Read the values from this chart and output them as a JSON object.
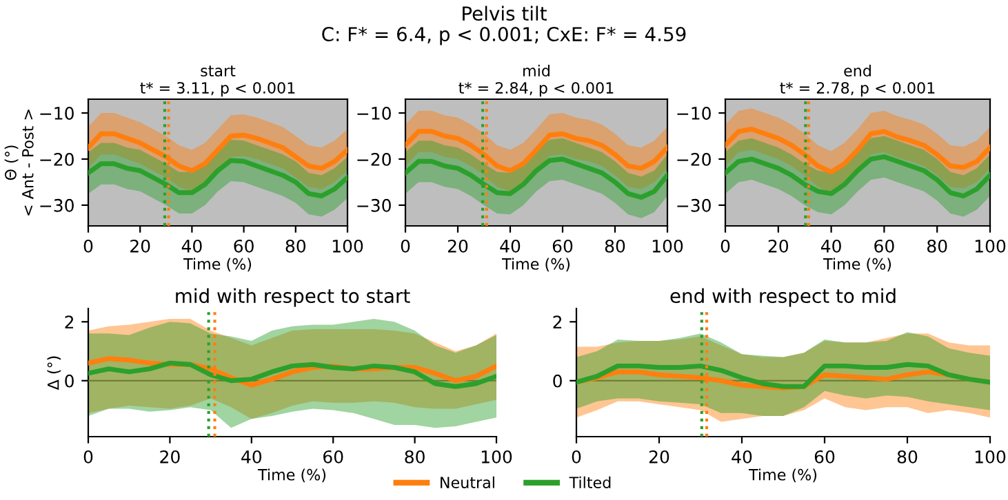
{
  "chart_data": [
    {
      "type": "line",
      "title": "start",
      "subtitle": "t* = 3.11, p < 0.001",
      "legend": "bottom",
      "ylabel": "Θ (°)\n< Ant - Post >",
      "xlabel": "Time (%)",
      "annotations": [
        "Pelvis tilt",
        "C: F* = 6.4, p < 0.001; CxE: F* = 4.59"
      ],
      "x": [
        0,
        5,
        10,
        15,
        20,
        25,
        30,
        35,
        40,
        45,
        50,
        55,
        60,
        65,
        70,
        75,
        80,
        85,
        90,
        95,
        100
      ],
      "series": [
        {
          "name": "Neutral",
          "color": "#ff7f0e",
          "values": [
            -17.5,
            -14.5,
            -14.5,
            -15.5,
            -16.5,
            -18,
            -19.5,
            -21.5,
            -22.5,
            -21,
            -18,
            -15,
            -14.8,
            -15.5,
            -16.5,
            -17.5,
            -19.5,
            -21.5,
            -22,
            -20.5,
            -18
          ],
          "lower": [
            -22,
            -19,
            -19,
            -20,
            -21,
            -22.5,
            -24,
            -26,
            -27,
            -25.5,
            -22.5,
            -19.5,
            -19.3,
            -20,
            -21,
            -22,
            -24,
            -26,
            -26.5,
            -25,
            -22.5
          ],
          "upper": [
            -13,
            -10,
            -10,
            -11,
            -12,
            -13.5,
            -15,
            -17,
            -18,
            -16.5,
            -13.5,
            -10.5,
            -10.3,
            -11,
            -12,
            -13,
            -15,
            -17,
            -17.5,
            -16,
            -13.5
          ]
        },
        {
          "name": "Tilted",
          "color": "#2ca02c",
          "values": [
            -23,
            -21,
            -21,
            -22,
            -22.5,
            -24,
            -25.5,
            -27.3,
            -27.3,
            -25.5,
            -22.5,
            -20.3,
            -20.5,
            -21.5,
            -22.5,
            -23.5,
            -25,
            -27.5,
            -28,
            -26.5,
            -24
          ],
          "lower": [
            -27.5,
            -25.5,
            -25.5,
            -26.5,
            -27,
            -28.5,
            -30,
            -31.8,
            -31.8,
            -30,
            -27,
            -24.8,
            -25,
            -26,
            -27,
            -28,
            -29.5,
            -32,
            -32.5,
            -31,
            -28.5
          ],
          "upper": [
            -18.5,
            -16.5,
            -16.5,
            -17.5,
            -18,
            -19.5,
            -21,
            -22.8,
            -22.8,
            -21,
            -18,
            -15.8,
            -16,
            -17,
            -18,
            -19,
            -20.5,
            -23,
            -23.5,
            -22,
            -19.5
          ]
        }
      ],
      "xlim": [
        0,
        100
      ],
      "xticks": [
        0,
        20,
        40,
        60,
        80,
        100
      ],
      "ylim": [
        -34.5,
        -7
      ],
      "yticks": [
        {
          "value": -30,
          "label": "−30"
        },
        {
          "value": -20,
          "label": "−20"
        },
        {
          "value": -10,
          "label": "−10"
        }
      ],
      "bands": [
        {
          "axis": "x",
          "from": 0,
          "to": 100,
          "color": "#bebebe"
        }
      ],
      "ref_lines": [
        {
          "axis": "x",
          "value": 29.5,
          "color": "#2ca02c",
          "line_style": "dotted"
        },
        {
          "axis": "x",
          "value": 31,
          "color": "#ff7f0e",
          "line_style": "dotted"
        }
      ]
    },
    {
      "type": "line",
      "title": "mid",
      "subtitle": "t* = 2.84, p < 0.001",
      "xlabel": "Time (%)",
      "x": [
        0,
        5,
        10,
        15,
        20,
        25,
        30,
        35,
        40,
        45,
        50,
        55,
        60,
        65,
        70,
        75,
        80,
        85,
        90,
        95,
        100
      ],
      "series": [
        {
          "color": "#ff7f0e",
          "values": [
            -17,
            -14,
            -14,
            -15,
            -15.5,
            -17,
            -19,
            -21.5,
            -22.5,
            -21,
            -18,
            -14.8,
            -14.5,
            -15.5,
            -16,
            -17,
            -19,
            -21.5,
            -22,
            -20.5,
            -17.5
          ],
          "lower": [
            -21.5,
            -18.5,
            -18.5,
            -19.5,
            -20,
            -21.5,
            -23.5,
            -26,
            -27,
            -25.5,
            -22.5,
            -19.3,
            -19,
            -20,
            -20.5,
            -21.5,
            -23.5,
            -26,
            -26.5,
            -25,
            -22
          ],
          "upper": [
            -12.5,
            -9.5,
            -9.5,
            -10.5,
            -11,
            -12.5,
            -14.5,
            -17,
            -18,
            -16.5,
            -13.5,
            -10.3,
            -10,
            -11,
            -11.5,
            -12.5,
            -14.5,
            -17,
            -17.5,
            -16,
            -13
          ]
        },
        {
          "color": "#2ca02c",
          "values": [
            -23,
            -20.5,
            -20.5,
            -21.5,
            -22,
            -23.5,
            -25.5,
            -27.3,
            -27.5,
            -25.5,
            -22.5,
            -20.3,
            -20,
            -21,
            -22,
            -23,
            -25,
            -27.5,
            -28.3,
            -27,
            -23.5
          ],
          "lower": [
            -27.5,
            -25,
            -25,
            -26,
            -26.5,
            -28,
            -30,
            -31.8,
            -32,
            -30,
            -27,
            -24.8,
            -24.5,
            -25.5,
            -26.5,
            -27.5,
            -29.5,
            -32,
            -32.8,
            -31.5,
            -28
          ],
          "upper": [
            -18.5,
            -16,
            -16,
            -17,
            -17.5,
            -19,
            -21,
            -22.8,
            -23,
            -21,
            -18,
            -15.8,
            -15.5,
            -16.5,
            -17.5,
            -18.5,
            -20.5,
            -23,
            -23.8,
            -22.5,
            -19
          ]
        }
      ],
      "xlim": [
        0,
        100
      ],
      "xticks": [
        0,
        20,
        40,
        60,
        80,
        100
      ],
      "ylim": [
        -34.5,
        -7
      ],
      "yticks": [
        {
          "value": -30,
          "label": "−30"
        },
        {
          "value": -20,
          "label": "−20"
        },
        {
          "value": -10,
          "label": "−10"
        }
      ],
      "bands": [
        {
          "axis": "x",
          "from": 0,
          "to": 100,
          "color": "#bebebe"
        }
      ],
      "ref_lines": [
        {
          "axis": "x",
          "value": 29.5,
          "color": "#2ca02c",
          "line_style": "dotted"
        },
        {
          "axis": "x",
          "value": 31,
          "color": "#ff7f0e",
          "line_style": "dotted"
        }
      ]
    },
    {
      "type": "line",
      "title": "end",
      "subtitle": "t* = 2.78, p < 0.001",
      "xlabel": "Time (%)",
      "x": [
        0,
        5,
        10,
        15,
        20,
        25,
        30,
        35,
        40,
        45,
        50,
        55,
        60,
        65,
        70,
        75,
        80,
        85,
        90,
        95,
        100
      ],
      "series": [
        {
          "color": "#ff7f0e",
          "values": [
            -17,
            -14,
            -13.5,
            -14.5,
            -15.5,
            -17,
            -19,
            -21.5,
            -22.8,
            -21,
            -18,
            -14.5,
            -14,
            -15.2,
            -16,
            -17,
            -19,
            -21.5,
            -21.8,
            -20.5,
            -17.5
          ],
          "lower": [
            -21.5,
            -18.5,
            -18,
            -19,
            -20,
            -21.5,
            -23.5,
            -26,
            -27.3,
            -25.5,
            -22.5,
            -19,
            -18.5,
            -19.7,
            -20.5,
            -21.5,
            -23.5,
            -26,
            -26.3,
            -25,
            -22
          ],
          "upper": [
            -12.5,
            -9.5,
            -9,
            -10,
            -11,
            -12.5,
            -14.5,
            -17,
            -18.3,
            -16.5,
            -13.5,
            -10,
            -9.5,
            -10.7,
            -11.5,
            -12.5,
            -14.5,
            -17,
            -17.3,
            -16,
            -13
          ]
        },
        {
          "color": "#2ca02c",
          "values": [
            -23,
            -20.5,
            -20,
            -21,
            -22,
            -23.5,
            -25.5,
            -27,
            -27.5,
            -25.5,
            -22.5,
            -20,
            -19.5,
            -20.5,
            -21.5,
            -22.5,
            -24.5,
            -27.3,
            -28,
            -26.5,
            -23.5
          ],
          "lower": [
            -27.5,
            -25,
            -24.5,
            -25.5,
            -26.5,
            -28,
            -30,
            -31.5,
            -32,
            -30,
            -27,
            -24.5,
            -24,
            -25,
            -26,
            -27,
            -29,
            -31.8,
            -32.5,
            -31,
            -28
          ],
          "upper": [
            -18.5,
            -16,
            -15.5,
            -16.5,
            -17.5,
            -19,
            -21,
            -22.5,
            -23,
            -21,
            -18,
            -15.5,
            -15,
            -16,
            -17,
            -18,
            -20,
            -22.8,
            -23.5,
            -22,
            -19
          ]
        }
      ],
      "xlim": [
        0,
        100
      ],
      "xticks": [
        0,
        20,
        40,
        60,
        80,
        100
      ],
      "ylim": [
        -34.5,
        -7
      ],
      "yticks": [
        {
          "value": -30,
          "label": "−30"
        },
        {
          "value": -20,
          "label": "−20"
        },
        {
          "value": -10,
          "label": "−10"
        }
      ],
      "bands": [
        {
          "axis": "x",
          "from": 0,
          "to": 100,
          "color": "#bebebe"
        }
      ],
      "ref_lines": [
        {
          "axis": "x",
          "value": 30.3,
          "color": "#2ca02c",
          "line_style": "dotted"
        },
        {
          "axis": "x",
          "value": 31.5,
          "color": "#ff7f0e",
          "line_style": "dotted"
        }
      ]
    },
    {
      "type": "line",
      "title": "mid with respect to start",
      "ylabel": "Δ (°)",
      "xlabel": "Time (%)",
      "x": [
        0,
        5,
        10,
        15,
        20,
        25,
        30,
        35,
        40,
        45,
        50,
        55,
        60,
        65,
        70,
        75,
        80,
        85,
        90,
        95,
        100
      ],
      "series": [
        {
          "color": "#ff7f0e",
          "values": [
            0.6,
            0.75,
            0.7,
            0.6,
            0.55,
            0.55,
            0.4,
            0.1,
            -0.15,
            0.05,
            0.3,
            0.45,
            0.5,
            0.4,
            0.4,
            0.45,
            0.45,
            0.25,
            0,
            0.15,
            0.5
          ],
          "lower": [
            -1.1,
            -0.95,
            -0.85,
            -0.9,
            -0.95,
            -0.85,
            -0.6,
            -0.9,
            -1.3,
            -1.1,
            -0.85,
            -0.7,
            -0.75,
            -0.75,
            -0.7,
            -0.75,
            -0.9,
            -0.95,
            -0.95,
            -0.8,
            -0.65
          ],
          "upper": [
            1.7,
            1.85,
            1.9,
            2.0,
            2.1,
            2.1,
            1.7,
            1.45,
            1.2,
            1.45,
            1.7,
            1.75,
            1.75,
            1.75,
            1.75,
            1.7,
            1.6,
            1.3,
            1.0,
            1.2,
            1.6
          ]
        },
        {
          "color": "#2ca02c",
          "values": [
            0.25,
            0.4,
            0.3,
            0.4,
            0.6,
            0.55,
            0.2,
            0,
            0.05,
            0.3,
            0.5,
            0.55,
            0.45,
            0.4,
            0.5,
            0.45,
            0.3,
            -0.1,
            -0.2,
            -0.1,
            0.15
          ],
          "lower": [
            -1.2,
            -0.95,
            -0.95,
            -1.05,
            -1.0,
            -0.9,
            -1.0,
            -1.6,
            -1.3,
            -1.2,
            -1.05,
            -0.95,
            -1.0,
            -1.1,
            -1.3,
            -1.5,
            -1.5,
            -1.6,
            -1.55,
            -1.4,
            -1.25
          ],
          "upper": [
            1.6,
            1.6,
            1.55,
            1.8,
            2.0,
            1.95,
            1.6,
            1.5,
            1.35,
            1.7,
            1.85,
            1.9,
            1.9,
            2.0,
            2.1,
            2.0,
            1.7,
            1.2,
            0.95,
            1.2,
            1.55
          ]
        }
      ],
      "xlim": [
        0,
        100
      ],
      "xticks": [
        0,
        20,
        40,
        60,
        80,
        100
      ],
      "ylim": [
        -1.9,
        2.45
      ],
      "yticks": [
        0,
        2
      ],
      "ref_lines": [
        {
          "axis": "y",
          "value": 0,
          "color": "#6b7a30",
          "line_style": "solid"
        },
        {
          "axis": "x",
          "value": 29.5,
          "color": "#2ca02c",
          "line_style": "dotted"
        },
        {
          "axis": "x",
          "value": 31,
          "color": "#ff7f0e",
          "line_style": "dotted"
        }
      ]
    },
    {
      "type": "line",
      "title": "end with respect to mid",
      "xlabel": "Time (%)",
      "x": [
        0,
        5,
        10,
        15,
        20,
        25,
        30,
        35,
        40,
        45,
        50,
        55,
        60,
        65,
        70,
        75,
        80,
        85,
        90,
        95,
        100
      ],
      "series": [
        {
          "color": "#ff7f0e",
          "values": [
            -0.05,
            0.1,
            0.3,
            0.3,
            0.2,
            0.15,
            0.1,
            0.0,
            -0.15,
            -0.2,
            -0.25,
            -0.2,
            0.2,
            0.15,
            0.1,
            0.05,
            0.2,
            0.3,
            0.2,
            0.05,
            -0.05
          ],
          "lower": [
            -1.25,
            -1.0,
            -0.7,
            -0.7,
            -0.8,
            -0.9,
            -1.0,
            -1.4,
            -1.3,
            -1.2,
            -1.2,
            -1.0,
            -0.6,
            -0.9,
            -1.0,
            -0.9,
            -0.9,
            -1.1,
            -1.0,
            -1.1,
            -1.25
          ],
          "upper": [
            1.15,
            1.15,
            1.3,
            1.35,
            1.35,
            1.4,
            1.5,
            1.2,
            0.9,
            0.8,
            0.8,
            0.95,
            1.35,
            1.3,
            1.3,
            1.45,
            1.6,
            1.6,
            1.3,
            1.2,
            1.2
          ]
        },
        {
          "color": "#2ca02c",
          "values": [
            -0.05,
            0.15,
            0.5,
            0.5,
            0.45,
            0.45,
            0.5,
            0.35,
            0.1,
            -0.1,
            -0.2,
            -0.2,
            0.5,
            0.5,
            0.45,
            0.45,
            0.55,
            0.5,
            0.2,
            0.05,
            -0.05
          ],
          "lower": [
            -0.95,
            -0.7,
            -0.6,
            -0.6,
            -0.7,
            -0.75,
            -0.8,
            -1.1,
            -1.1,
            -1.2,
            -1.2,
            -0.9,
            -0.35,
            -0.5,
            -0.6,
            -0.5,
            -0.55,
            -0.7,
            -0.8,
            -0.9,
            -1.0
          ],
          "upper": [
            0.8,
            1.0,
            1.4,
            1.35,
            1.35,
            1.45,
            1.6,
            1.3,
            0.9,
            0.85,
            0.8,
            0.95,
            1.4,
            1.3,
            1.3,
            1.35,
            1.65,
            1.5,
            1.1,
            0.95,
            0.85
          ]
        }
      ],
      "xlim": [
        0,
        100
      ],
      "xticks": [
        0,
        20,
        40,
        60,
        80,
        100
      ],
      "ylim": [
        -1.9,
        2.45
      ],
      "yticks": [
        0,
        2
      ],
      "ref_lines": [
        {
          "axis": "y",
          "value": 0,
          "color": "#6b7a30",
          "line_style": "solid"
        },
        {
          "axis": "x",
          "value": 30.3,
          "color": "#2ca02c",
          "line_style": "dotted"
        },
        {
          "axis": "x",
          "value": 31.5,
          "color": "#ff7f0e",
          "line_style": "dotted"
        }
      ]
    }
  ]
}
